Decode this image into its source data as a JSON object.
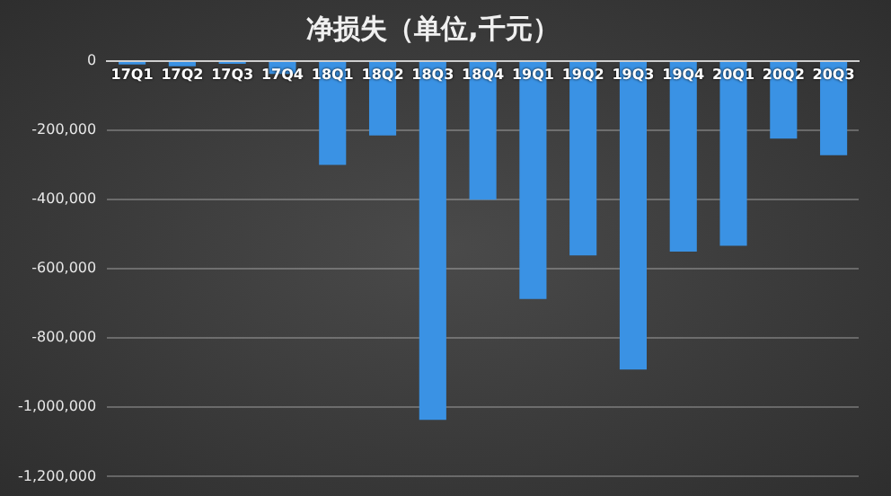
{
  "chart_data": {
    "type": "bar",
    "title": "净损失（单位,千元）",
    "categories": [
      "17Q1",
      "17Q2",
      "17Q3",
      "17Q4",
      "18Q1",
      "18Q2",
      "18Q3",
      "18Q4",
      "19Q1",
      "19Q2",
      "19Q3",
      "19Q4",
      "20Q1",
      "20Q2",
      "20Q3"
    ],
    "values": [
      -10000,
      -15000,
      -8000,
      -37000,
      -300000,
      -215000,
      -1036000,
      -400000,
      -687000,
      -561000,
      -891000,
      -550000,
      -533000,
      -224000,
      -272000
    ],
    "color": "#3a92e4",
    "ylim": [
      -1200000,
      0
    ],
    "yticks": [
      0,
      {
        "value": -200000,
        "label": "-200,000"
      },
      {
        "value": -400000,
        "label": "-400,000"
      },
      {
        "value": -600000,
        "label": "-600,000"
      },
      {
        "value": -800000,
        "label": "-800,000"
      },
      {
        "value": -1000000,
        "label": "-1,000,000"
      },
      {
        "value": -1200000,
        "label": "-1,200,000"
      }
    ],
    "grid": "y"
  }
}
